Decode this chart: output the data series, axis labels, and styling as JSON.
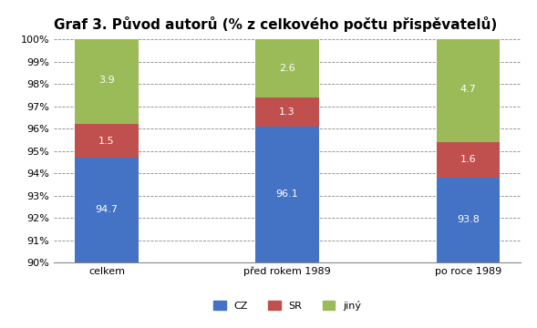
{
  "title": "Graf 3. Původ autorů (% z celkového počtu přispěvatelů)",
  "categories": [
    "celkem",
    "před rokem 1989",
    "po roce 1989"
  ],
  "series": {
    "CZ": [
      94.7,
      96.1,
      93.8
    ],
    "SR": [
      1.5,
      1.3,
      1.6
    ],
    "jiný": [
      3.9,
      2.6,
      4.7
    ]
  },
  "colors": {
    "CZ": "#4472C4",
    "SR": "#C0504D",
    "jiný": "#9BBB59"
  },
  "ylim": [
    90,
    100
  ],
  "yticks": [
    90,
    91,
    92,
    93,
    94,
    95,
    96,
    97,
    98,
    99,
    100
  ],
  "ytick_labels": [
    "90%",
    "91%",
    "92%",
    "93%",
    "94%",
    "95%",
    "96%",
    "97%",
    "98%",
    "99%",
    "100%"
  ],
  "bar_width": 0.35,
  "background_color": "#FFFFFF",
  "title_fontsize": 11,
  "label_fontsize": 8,
  "tick_fontsize": 8,
  "legend_fontsize": 8
}
